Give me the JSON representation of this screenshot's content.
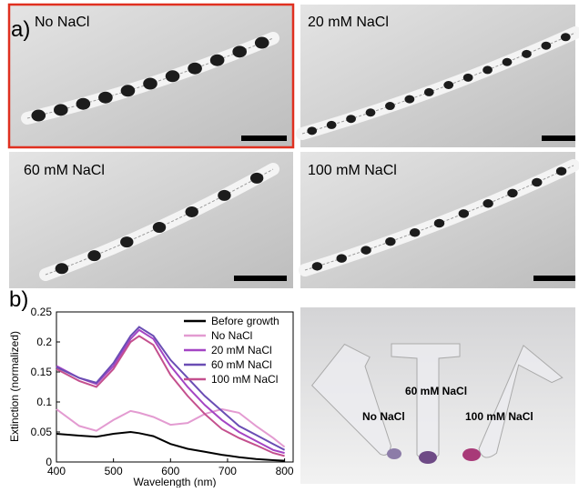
{
  "figure": {
    "panel_a": {
      "label": "a)",
      "images": [
        {
          "label": "No NaCl"
        },
        {
          "label": "20 mM NaCl"
        },
        {
          "label": "60 mM NaCl"
        },
        {
          "label": "100 mM NaCl"
        }
      ]
    },
    "panel_b": {
      "label": "b)"
    },
    "photo": {
      "labels": [
        "60 mM NaCl",
        "No NaCl",
        "100 mM NaCl"
      ]
    }
  },
  "chart_data": {
    "type": "line",
    "x_label": "Wavelength (nm)",
    "y_label": "Extinction (normalized)",
    "x": [
      400,
      440,
      470,
      500,
      530,
      545,
      570,
      600,
      630,
      660,
      690,
      720,
      750,
      780,
      800
    ],
    "xlim": [
      400,
      815
    ],
    "xticks": [
      400,
      500,
      600,
      700,
      800
    ],
    "ylim": [
      0,
      0.25
    ],
    "yticks": [
      0,
      0.05,
      0.1,
      0.15,
      0.2,
      0.25
    ],
    "legend": "upper right",
    "series": [
      {
        "name": "Before growth",
        "color": "#000000",
        "values": [
          0.047,
          0.044,
          0.042,
          0.047,
          0.05,
          0.048,
          0.043,
          0.03,
          0.022,
          0.017,
          0.012,
          0.008,
          0.005,
          0.003,
          0.002
        ]
      },
      {
        "name": "No NaCl",
        "color": "#e39bd1",
        "values": [
          0.088,
          0.06,
          0.052,
          0.07,
          0.085,
          0.082,
          0.075,
          0.062,
          0.065,
          0.08,
          0.088,
          0.082,
          0.06,
          0.04,
          0.025
        ]
      },
      {
        "name": "20 mM NaCl",
        "color": "#a445c4",
        "values": [
          0.16,
          0.14,
          0.13,
          0.16,
          0.205,
          0.22,
          0.205,
          0.16,
          0.125,
          0.095,
          0.07,
          0.05,
          0.035,
          0.02,
          0.015
        ]
      },
      {
        "name": "60 mM NaCl",
        "color": "#6a4db4",
        "values": [
          0.158,
          0.14,
          0.132,
          0.165,
          0.21,
          0.225,
          0.21,
          0.17,
          0.14,
          0.11,
          0.085,
          0.06,
          0.045,
          0.03,
          0.02
        ]
      },
      {
        "name": "100 mM NaCl",
        "color": "#c4508e",
        "values": [
          0.155,
          0.135,
          0.125,
          0.155,
          0.2,
          0.21,
          0.195,
          0.145,
          0.11,
          0.08,
          0.055,
          0.04,
          0.028,
          0.015,
          0.01
        ]
      }
    ]
  }
}
